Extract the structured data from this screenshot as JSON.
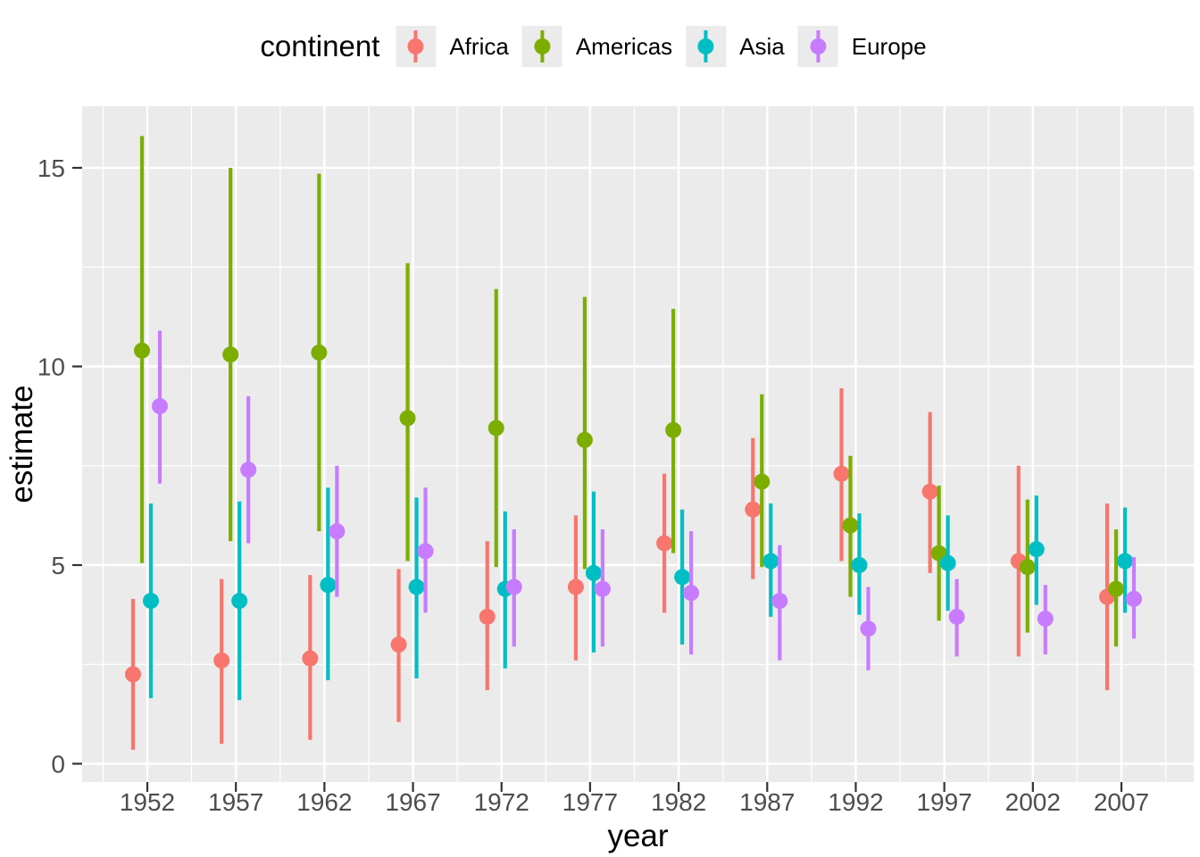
{
  "legend": {
    "title": "continent",
    "items": [
      {
        "label": "Africa",
        "color": "#F8766D"
      },
      {
        "label": "Americas",
        "color": "#7CAE00"
      },
      {
        "label": "Asia",
        "color": "#00BFC4"
      },
      {
        "label": "Europe",
        "color": "#C77CFF"
      }
    ]
  },
  "axes": {
    "x": {
      "title": "year",
      "tick_labels": [
        "1952",
        "1957",
        "1962",
        "1967",
        "1972",
        "1977",
        "1982",
        "1987",
        "1992",
        "1997",
        "2002",
        "2007"
      ]
    },
    "y": {
      "title": "estimate",
      "tick_labels": [
        "0",
        "5",
        "10",
        "15"
      ]
    }
  },
  "panel": {
    "background": "#EBEBEB",
    "grid_color": "#FFFFFF",
    "tick_color": "#333333",
    "tick_label_color": "#4D4D4D",
    "axis_title_color": "#000000"
  },
  "chart_data": {
    "type": "pointrange",
    "title": "",
    "xlabel": "year",
    "ylabel": "estimate",
    "legend_title": "continent",
    "legend_position": "top",
    "grid": {
      "major": true,
      "minor": true
    },
    "x_ticks": [
      1952,
      1957,
      1962,
      1967,
      1972,
      1977,
      1982,
      1987,
      1992,
      1997,
      2002,
      2007
    ],
    "y_ticks": [
      0,
      5,
      10,
      15
    ],
    "xlim": [
      1948.3,
      2011.1
    ],
    "ylim": [
      -0.46,
      16.55
    ],
    "point_format": [
      "year",
      "estimate",
      "ymin",
      "ymax"
    ],
    "series": [
      {
        "name": "Africa",
        "color": "#F8766D",
        "points": [
          [
            1952,
            2.25,
            0.35,
            4.15
          ],
          [
            1957,
            2.6,
            0.5,
            4.65
          ],
          [
            1962,
            2.65,
            0.6,
            4.75
          ],
          [
            1967,
            3.0,
            1.05,
            4.9
          ],
          [
            1972,
            3.7,
            1.85,
            5.6
          ],
          [
            1977,
            4.45,
            2.6,
            6.25
          ],
          [
            1982,
            5.55,
            3.8,
            7.3
          ],
          [
            1987,
            6.4,
            4.65,
            8.2
          ],
          [
            1992,
            7.3,
            5.1,
            9.45
          ],
          [
            1997,
            6.85,
            4.8,
            8.85
          ],
          [
            2002,
            5.1,
            2.7,
            7.5
          ],
          [
            2007,
            4.2,
            1.85,
            6.55
          ]
        ]
      },
      {
        "name": "Americas",
        "color": "#7CAE00",
        "points": [
          [
            1952,
            10.4,
            5.05,
            15.8
          ],
          [
            1957,
            10.3,
            5.6,
            15.0
          ],
          [
            1962,
            10.35,
            5.85,
            14.85
          ],
          [
            1967,
            8.7,
            5.1,
            12.6
          ],
          [
            1972,
            8.45,
            4.95,
            11.95
          ],
          [
            1977,
            8.15,
            4.9,
            11.75
          ],
          [
            1982,
            8.4,
            5.3,
            11.45
          ],
          [
            1987,
            7.1,
            4.95,
            9.3
          ],
          [
            1992,
            6.0,
            4.2,
            7.75
          ],
          [
            1997,
            5.3,
            3.6,
            7.0
          ],
          [
            2002,
            4.95,
            3.3,
            6.65
          ],
          [
            2007,
            4.4,
            2.95,
            5.9
          ]
        ]
      },
      {
        "name": "Asia",
        "color": "#00BFC4",
        "points": [
          [
            1952,
            4.1,
            1.65,
            6.55
          ],
          [
            1957,
            4.1,
            1.6,
            6.6
          ],
          [
            1962,
            4.5,
            2.1,
            6.95
          ],
          [
            1967,
            4.45,
            2.15,
            6.7
          ],
          [
            1972,
            4.4,
            2.4,
            6.35
          ],
          [
            1977,
            4.8,
            2.8,
            6.85
          ],
          [
            1982,
            4.7,
            3.0,
            6.4
          ],
          [
            1987,
            5.1,
            3.7,
            6.55
          ],
          [
            1992,
            5.0,
            3.75,
            6.3
          ],
          [
            1997,
            5.05,
            3.85,
            6.25
          ],
          [
            2002,
            5.4,
            4.0,
            6.75
          ],
          [
            2007,
            5.1,
            3.8,
            6.45
          ]
        ]
      },
      {
        "name": "Europe",
        "color": "#C77CFF",
        "points": [
          [
            1952,
            9.0,
            7.05,
            10.9
          ],
          [
            1957,
            7.4,
            5.55,
            9.25
          ],
          [
            1962,
            5.85,
            4.2,
            7.5
          ],
          [
            1967,
            5.35,
            3.8,
            6.95
          ],
          [
            1972,
            4.45,
            2.95,
            5.9
          ],
          [
            1977,
            4.4,
            2.95,
            5.9
          ],
          [
            1982,
            4.3,
            2.75,
            5.85
          ],
          [
            1987,
            4.1,
            2.6,
            5.5
          ],
          [
            1992,
            3.4,
            2.35,
            4.45
          ],
          [
            1997,
            3.7,
            2.7,
            4.65
          ],
          [
            2002,
            3.65,
            2.75,
            4.5
          ],
          [
            2007,
            4.15,
            3.15,
            5.2
          ]
        ]
      }
    ]
  }
}
